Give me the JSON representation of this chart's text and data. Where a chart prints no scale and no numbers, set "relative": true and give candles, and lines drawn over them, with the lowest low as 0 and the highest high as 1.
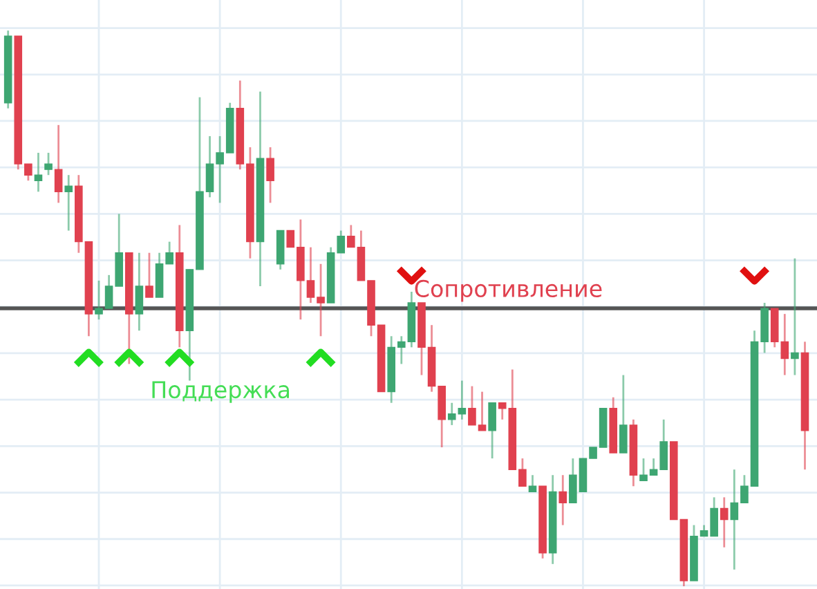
{
  "chart_data": {
    "type": "candlestick",
    "relative": true,
    "grid": true,
    "legend": false,
    "categories": [
      null,
      null,
      null,
      null,
      null,
      null,
      null,
      null,
      null,
      null,
      null,
      null,
      null,
      null,
      null,
      null,
      null,
      null,
      null,
      null,
      null,
      null,
      null,
      null,
      null,
      null,
      null,
      null,
      null,
      null,
      null,
      null,
      null,
      null,
      null,
      null,
      null,
      null,
      null,
      null,
      null,
      null,
      null,
      null,
      null,
      null,
      null,
      null,
      null,
      null,
      null,
      null,
      null,
      null,
      null,
      null,
      null,
      null,
      null,
      null,
      null,
      null,
      null,
      null,
      null,
      null,
      null,
      null,
      null,
      null,
      null,
      null,
      null,
      null,
      null,
      null,
      null,
      null,
      null,
      null
    ],
    "ohlc": [
      [
        0.87,
        1.0,
        0.86,
        0.99
      ],
      [
        0.99,
        0.99,
        0.75,
        0.76
      ],
      [
        0.76,
        0.76,
        0.73,
        0.74
      ],
      [
        0.73,
        0.78,
        0.71,
        0.74
      ],
      [
        0.75,
        0.78,
        0.74,
        0.76
      ],
      [
        0.75,
        0.83,
        0.69,
        0.71
      ],
      [
        0.71,
        0.74,
        0.64,
        0.72
      ],
      [
        0.72,
        0.74,
        0.6,
        0.62
      ],
      [
        0.62,
        0.62,
        0.45,
        0.49
      ],
      [
        0.49,
        0.55,
        0.48,
        0.5
      ],
      [
        0.5,
        0.56,
        0.5,
        0.54
      ],
      [
        0.54,
        0.67,
        0.54,
        0.6
      ],
      [
        0.6,
        0.6,
        0.4,
        0.49
      ],
      [
        0.49,
        0.6,
        0.46,
        0.54
      ],
      [
        0.54,
        0.6,
        0.52,
        0.52
      ],
      [
        0.52,
        0.6,
        0.52,
        0.58
      ],
      [
        0.58,
        0.62,
        0.58,
        0.6
      ],
      [
        0.6,
        0.65,
        0.43,
        0.46
      ],
      [
        0.46,
        0.57,
        0.37,
        0.57
      ],
      [
        0.57,
        0.88,
        0.57,
        0.71
      ],
      [
        0.71,
        0.81,
        0.7,
        0.76
      ],
      [
        0.76,
        0.81,
        0.69,
        0.78
      ],
      [
        0.78,
        0.87,
        0.78,
        0.86
      ],
      [
        0.86,
        0.91,
        0.75,
        0.76
      ],
      [
        0.76,
        0.79,
        0.59,
        0.62
      ],
      [
        0.62,
        0.89,
        0.54,
        0.77
      ],
      [
        0.77,
        0.79,
        0.69,
        0.73
      ],
      [
        0.58,
        0.64,
        0.57,
        0.64
      ],
      [
        0.64,
        0.64,
        0.61,
        0.61
      ],
      [
        0.61,
        0.66,
        0.48,
        0.55
      ],
      [
        0.55,
        0.61,
        0.51,
        0.52
      ],
      [
        0.52,
        0.58,
        0.45,
        0.51
      ],
      [
        0.51,
        0.61,
        0.51,
        0.6
      ],
      [
        0.6,
        0.64,
        0.6,
        0.63
      ],
      [
        0.63,
        0.65,
        0.61,
        0.61
      ],
      [
        0.61,
        0.64,
        0.55,
        0.55
      ],
      [
        0.55,
        0.55,
        0.45,
        0.47
      ],
      [
        0.47,
        0.47,
        0.35,
        0.35
      ],
      [
        0.35,
        0.45,
        0.33,
        0.43
      ],
      [
        0.43,
        0.45,
        0.4,
        0.44
      ],
      [
        0.44,
        0.53,
        0.43,
        0.51
      ],
      [
        0.51,
        0.51,
        0.38,
        0.43
      ],
      [
        0.43,
        0.47,
        0.35,
        0.36
      ],
      [
        0.36,
        0.36,
        0.25,
        0.3
      ],
      [
        0.3,
        0.33,
        0.29,
        0.31
      ],
      [
        0.31,
        0.37,
        0.3,
        0.32
      ],
      [
        0.32,
        0.36,
        0.29,
        0.29
      ],
      [
        0.29,
        0.35,
        0.28,
        0.28
      ],
      [
        0.28,
        0.33,
        0.23,
        0.33
      ],
      [
        0.33,
        0.33,
        0.3,
        0.32
      ],
      [
        0.32,
        0.39,
        0.21,
        0.21
      ],
      [
        0.21,
        0.23,
        0.18,
        0.18
      ],
      [
        0.17,
        0.2,
        0.17,
        0.18
      ],
      [
        0.18,
        0.18,
        0.05,
        0.06
      ],
      [
        0.06,
        0.2,
        0.04,
        0.17
      ],
      [
        0.17,
        0.2,
        0.11,
        0.15
      ],
      [
        0.15,
        0.23,
        0.15,
        0.2
      ],
      [
        0.17,
        0.23,
        0.17,
        0.23
      ],
      [
        0.23,
        0.25,
        0.23,
        0.25
      ],
      [
        0.25,
        0.32,
        0.25,
        0.32
      ],
      [
        0.32,
        0.34,
        0.24,
        0.24
      ],
      [
        0.24,
        0.38,
        0.24,
        0.29
      ],
      [
        0.29,
        0.3,
        0.18,
        0.2
      ],
      [
        0.19,
        0.23,
        0.19,
        0.2
      ],
      [
        0.2,
        0.23,
        0.2,
        0.21
      ],
      [
        0.21,
        0.3,
        0.21,
        0.26
      ],
      [
        0.26,
        0.26,
        0.12,
        0.12
      ],
      [
        0.12,
        0.12,
        0.0,
        0.01
      ],
      [
        0.01,
        0.11,
        0.01,
        0.09
      ],
      [
        0.09,
        0.11,
        0.09,
        0.1
      ],
      [
        0.09,
        0.16,
        0.09,
        0.14
      ],
      [
        0.14,
        0.16,
        0.07,
        0.12
      ],
      [
        0.12,
        0.21,
        0.03,
        0.15
      ],
      [
        0.15,
        0.2,
        0.15,
        0.18
      ],
      [
        0.18,
        0.46,
        0.18,
        0.44
      ],
      [
        0.44,
        0.51,
        0.42,
        0.5
      ],
      [
        0.5,
        0.5,
        0.43,
        0.44
      ],
      [
        0.44,
        0.49,
        0.38,
        0.41
      ],
      [
        0.41,
        0.59,
        0.38,
        0.42
      ],
      [
        0.42,
        0.44,
        0.21,
        0.28
      ]
    ],
    "colors": [
      "#3ea672",
      "#e0414f",
      "#e0414f",
      "#3ea672",
      "#3ea672",
      "#e0414f",
      "#3ea672",
      "#e0414f",
      "#e0414f",
      "#3ea672",
      "#3ea672",
      "#3ea672",
      "#e0414f",
      "#3ea672",
      "#e0414f",
      "#3ea672",
      "#3ea672",
      "#e0414f",
      "#3ea672",
      "#3ea672",
      "#3ea672",
      "#3ea672",
      "#3ea672",
      "#e0414f",
      "#e0414f",
      "#3ea672",
      "#e0414f",
      "#3ea672",
      "#e0414f",
      "#e0414f",
      "#e0414f",
      "#e0414f",
      "#3ea672",
      "#3ea672",
      "#e0414f",
      "#e0414f",
      "#e0414f",
      "#e0414f",
      "#3ea672",
      "#3ea672",
      "#3ea672",
      "#e0414f",
      "#e0414f",
      "#e0414f",
      "#3ea672",
      "#3ea672",
      "#e0414f",
      "#e0414f",
      "#3ea672",
      "#e0414f",
      "#e0414f",
      "#e0414f",
      "#3ea672",
      "#e0414f",
      "#3ea672",
      "#e0414f",
      "#3ea672",
      "#3ea672",
      "#3ea672",
      "#3ea672",
      "#e0414f",
      "#3ea672",
      "#e0414f",
      "#3ea672",
      "#3ea672",
      "#3ea672",
      "#e0414f",
      "#e0414f",
      "#3ea672",
      "#3ea672",
      "#3ea672",
      "#e0414f",
      "#3ea672",
      "#3ea672",
      "#3ea672",
      "#3ea672",
      "#e0414f",
      "#e0414f",
      "#3ea672",
      "#e0414f"
    ],
    "series": [
      {
        "type": "scatter",
        "marker": "cross",
        "color": "#22dd22",
        "values": [
          null,
          null,
          null,
          null,
          null,
          null,
          null,
          null,
          0.41,
          null,
          null,
          null,
          0.41,
          null,
          null,
          null,
          null,
          0.41,
          null,
          null,
          null,
          null,
          null,
          null,
          null,
          null,
          null,
          null,
          null,
          null,
          null,
          0.41,
          null,
          null,
          null,
          null,
          null,
          null,
          null,
          null,
          null,
          null,
          null,
          null,
          null,
          null,
          null,
          null,
          null,
          null,
          null,
          null,
          null,
          null,
          null,
          null,
          null,
          null,
          null,
          null,
          null,
          null,
          null,
          null,
          null,
          null,
          null,
          null,
          null,
          null,
          null,
          null,
          null,
          null,
          null,
          null,
          null,
          null,
          null,
          null
        ]
      },
      {
        "type": "scatter",
        "marker": "cross",
        "color": "#e01010",
        "values": [
          null,
          null,
          null,
          null,
          null,
          null,
          null,
          null,
          null,
          null,
          null,
          null,
          null,
          null,
          null,
          null,
          null,
          null,
          null,
          null,
          null,
          null,
          null,
          null,
          null,
          null,
          null,
          null,
          null,
          null,
          null,
          null,
          null,
          null,
          null,
          null,
          null,
          null,
          null,
          null,
          0.56,
          null,
          null,
          null,
          null,
          null,
          null,
          null,
          null,
          null,
          null,
          null,
          null,
          null,
          null,
          null,
          null,
          null,
          null,
          null,
          null,
          null,
          null,
          null,
          null,
          null,
          null,
          null,
          null,
          null,
          null,
          null,
          null,
          null,
          0.56,
          null,
          null,
          null,
          null,
          null
        ]
      }
    ],
    "ref_lines": [
      {
        "axis": "y",
        "value": 0.5,
        "label": "Сопротивление",
        "color": "#555555"
      }
    ],
    "annotations": [
      "Поддержка"
    ]
  }
}
